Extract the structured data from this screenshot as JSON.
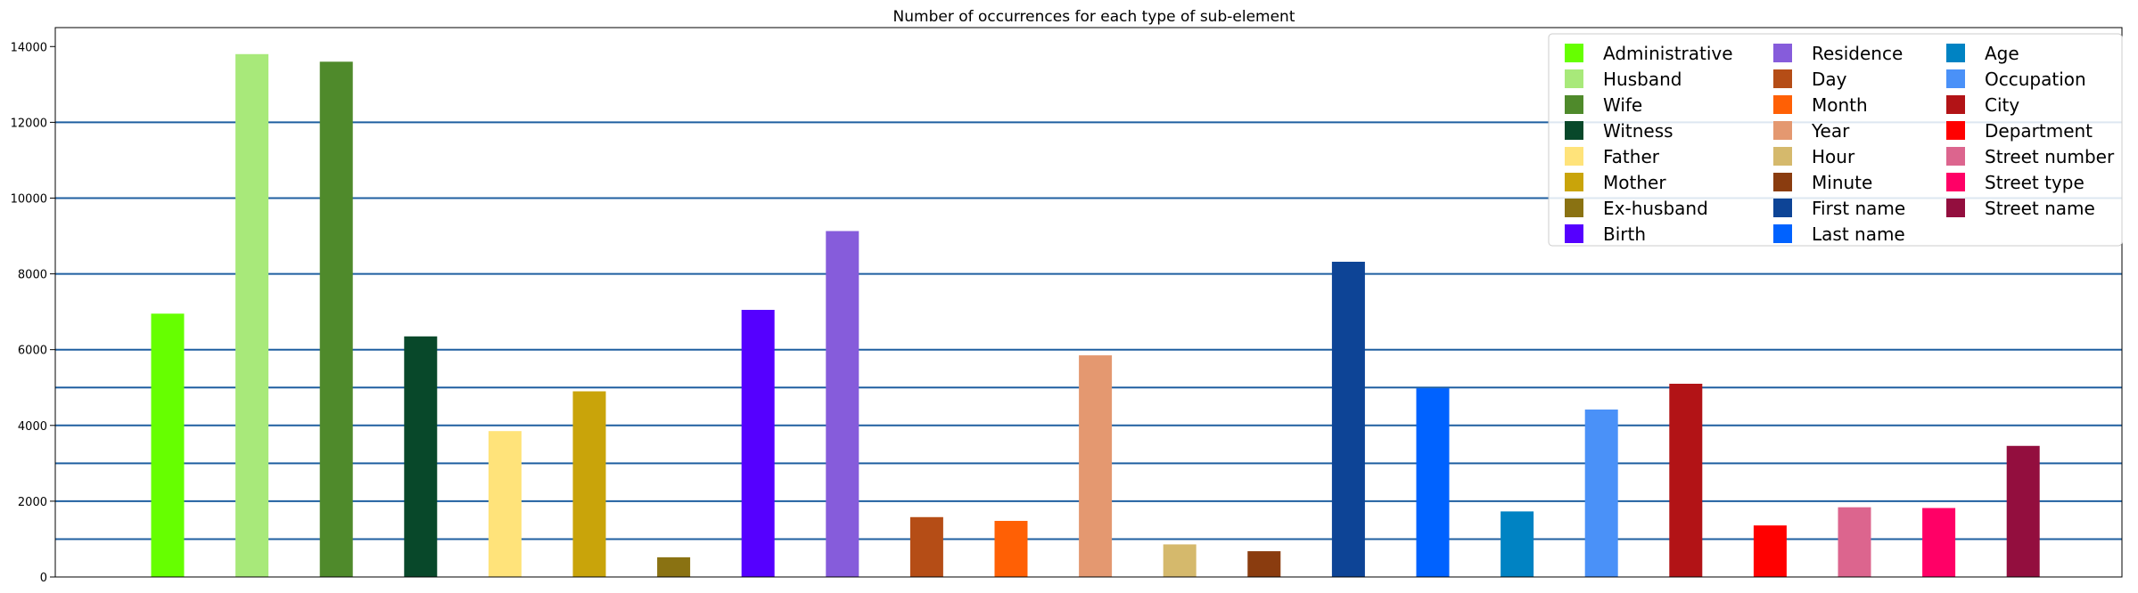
{
  "chart_data": {
    "type": "bar",
    "title": "Number of occurrences for each type of sub-element",
    "xlabel": "",
    "ylabel": "",
    "ylim": [
      0,
      14500
    ],
    "yticks": [
      0,
      2000,
      4000,
      6000,
      8000,
      10000,
      12000,
      14000
    ],
    "hlines": [
      1000,
      2000,
      3000,
      4000,
      5000,
      6000,
      8000,
      10000,
      12000
    ],
    "hline_color": "#1f5fa0",
    "legend_position": "top-right",
    "legend_columns": 3,
    "categories": [
      "Administrative",
      "Husband",
      "Wife",
      "Witness",
      "Father",
      "Mother",
      "Ex-husband",
      "Birth",
      "Residence",
      "Day",
      "Month",
      "Year",
      "Hour",
      "Minute",
      "First name",
      "Last name",
      "Age",
      "Occupation",
      "City",
      "Department",
      "Street number",
      "Street type",
      "Street name"
    ],
    "values": [
      6950,
      13800,
      13600,
      6350,
      3850,
      4900,
      520,
      7050,
      9130,
      1580,
      1480,
      5850,
      860,
      680,
      8320,
      4980,
      1730,
      4420,
      5100,
      1360,
      1840,
      1820,
      3460
    ],
    "colors": [
      "#66ff00",
      "#a8e97a",
      "#4f8a2b",
      "#08482a",
      "#ffe37a",
      "#c9a40a",
      "#8a7212",
      "#5500ff",
      "#865cdb",
      "#b54d16",
      "#ff6005",
      "#e49870",
      "#d5b96c",
      "#8a3c0f",
      "#0d4496",
      "#0062ff",
      "#0083c3",
      "#4a91f8",
      "#b21316",
      "#ff0000",
      "#dc658e",
      "#ff0066",
      "#930e3e"
    ]
  }
}
